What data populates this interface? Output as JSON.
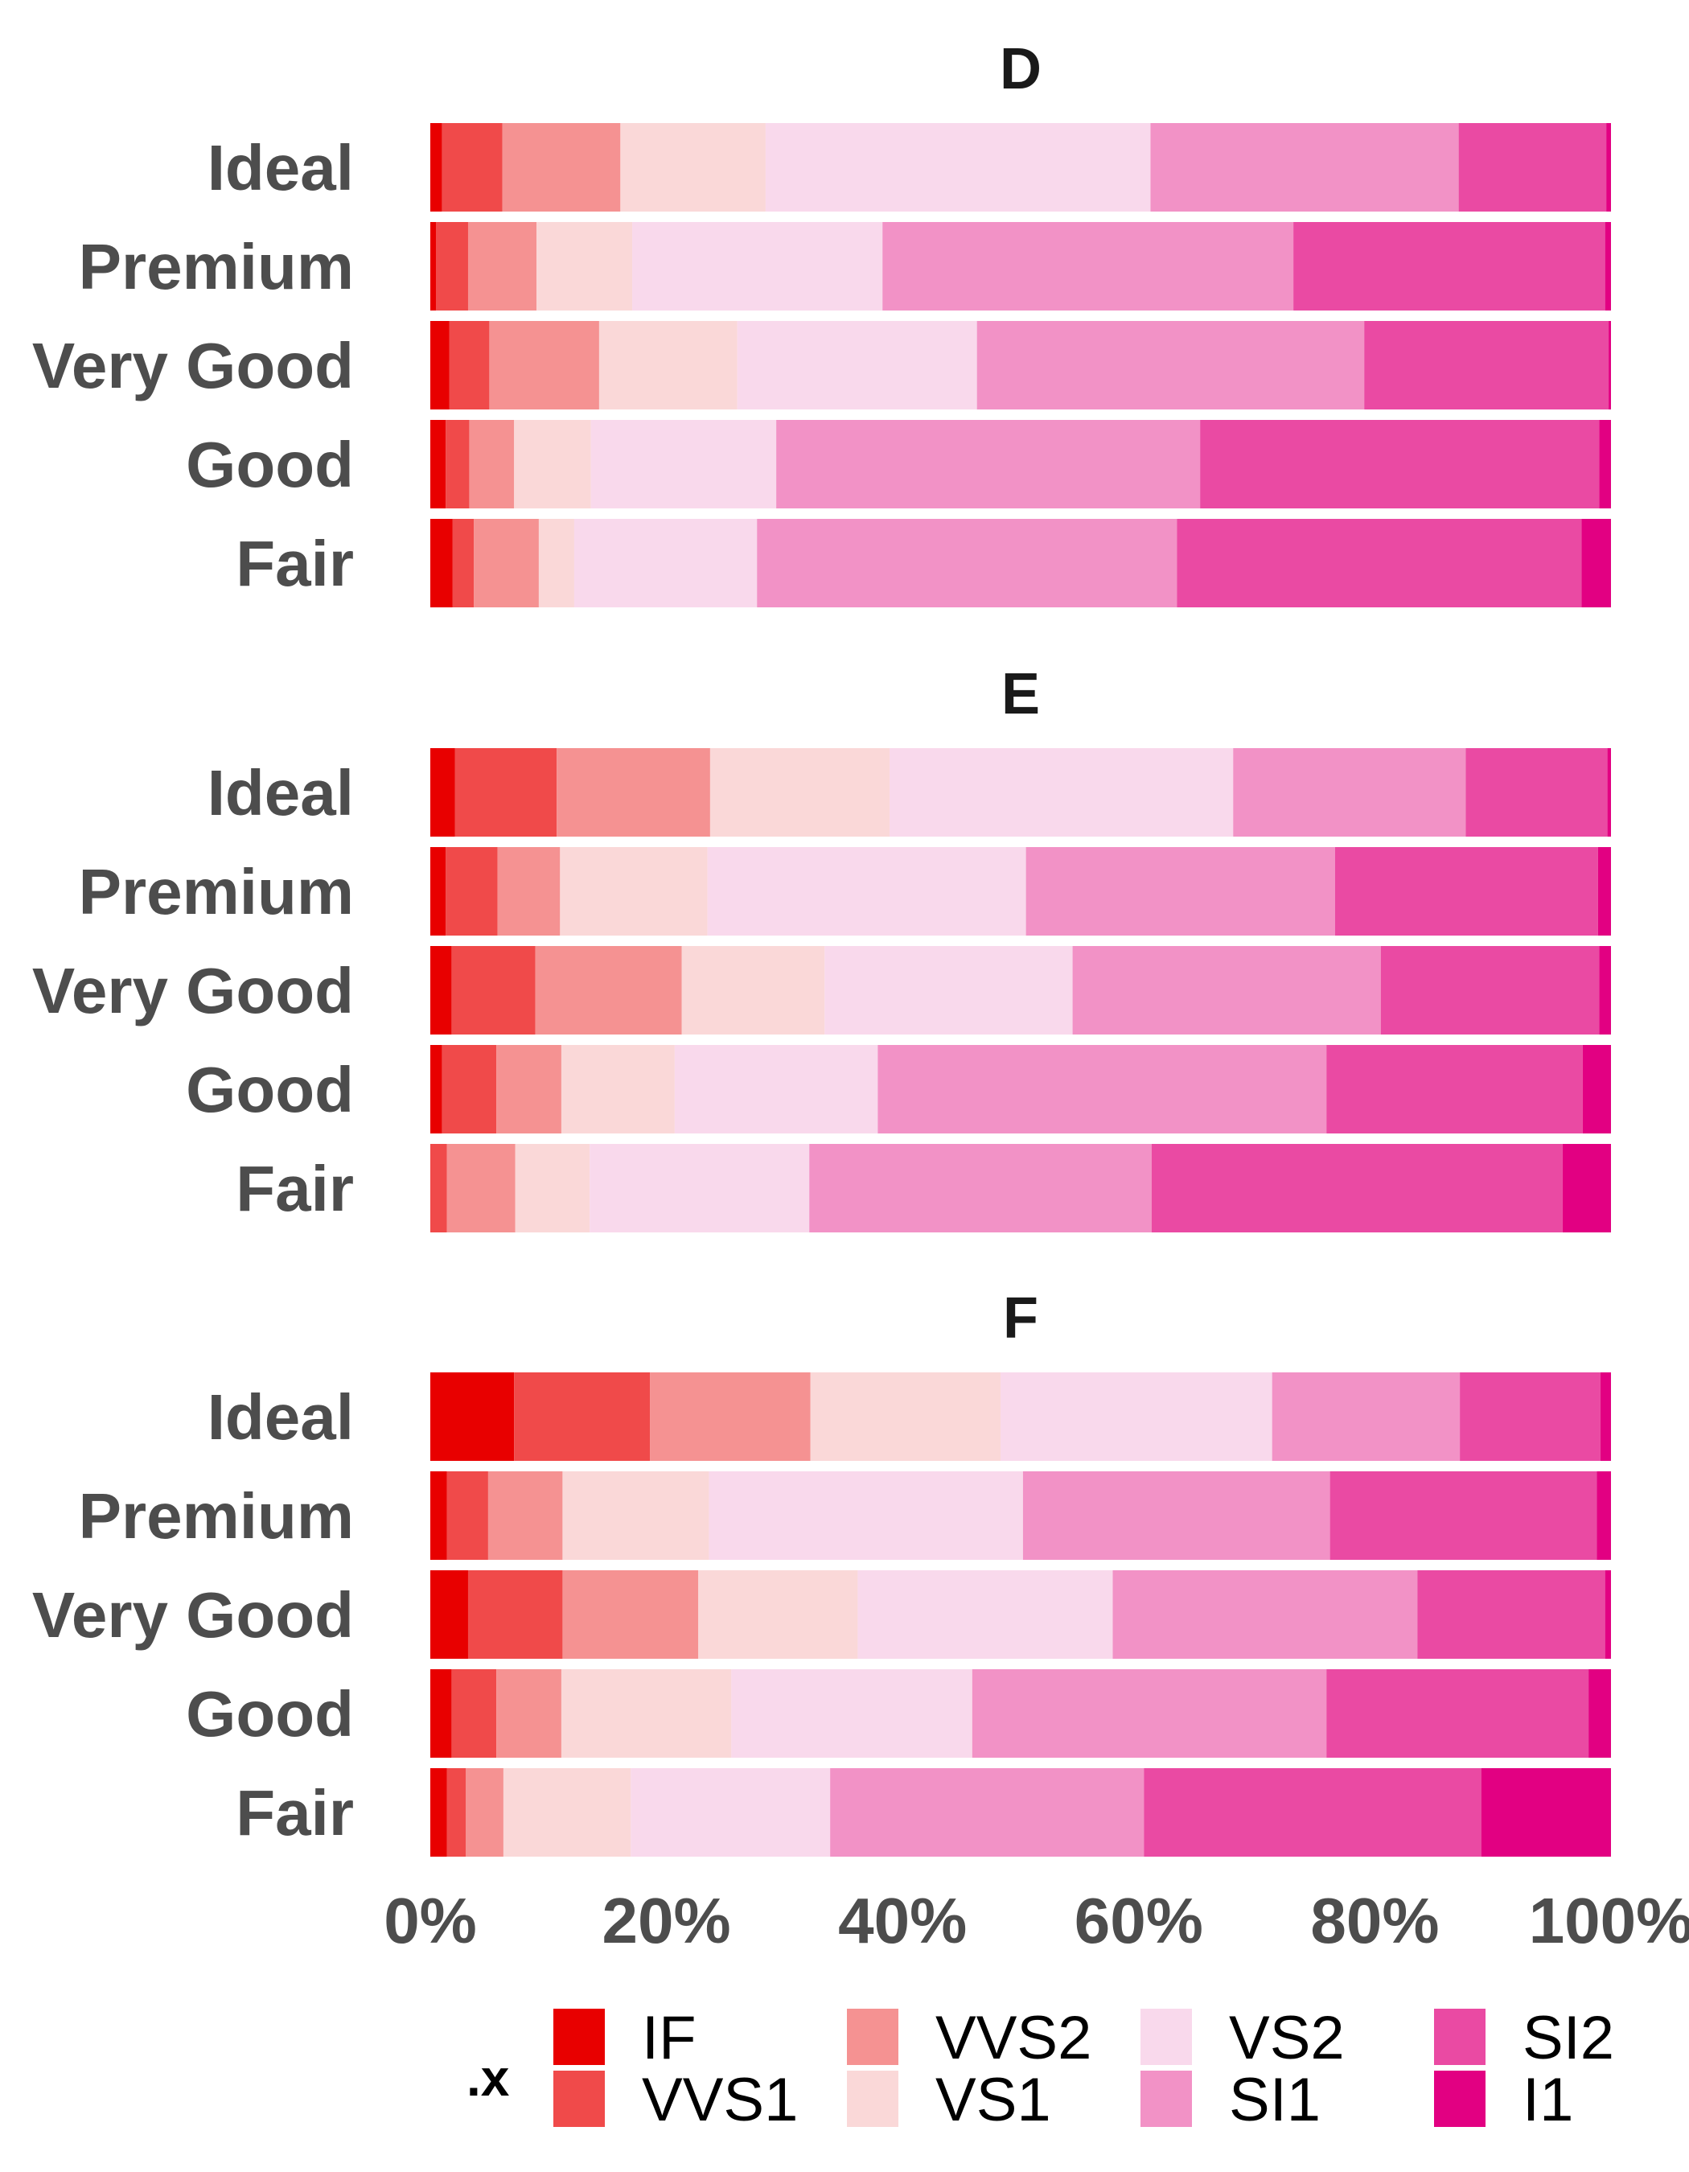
{
  "chart_data": {
    "type": "bar",
    "orientation": "horizontal",
    "stacked": "percent",
    "grid": false,
    "legend_position": "bottom",
    "legend_title": ".x",
    "categories": [
      "Ideal",
      "Premium",
      "Very Good",
      "Good",
      "Fair"
    ],
    "x_ticks": [
      "0%",
      "20%",
      "40%",
      "60%",
      "80%",
      "100%"
    ],
    "xlim": [
      0,
      100
    ],
    "series": [
      {
        "name": "IF",
        "color": "#E80000"
      },
      {
        "name": "VVS1",
        "color": "#F04A4A"
      },
      {
        "name": "VVS2",
        "color": "#F59292"
      },
      {
        "name": "VS1",
        "color": "#FAD8D8"
      },
      {
        "name": "VS2",
        "color": "#F9D9EC"
      },
      {
        "name": "SI1",
        "color": "#F292C6"
      },
      {
        "name": "SI2",
        "color": "#EA4AA3"
      },
      {
        "name": "I1",
        "color": "#E20082"
      }
    ],
    "panels": [
      {
        "title": "D",
        "values": [
          [
            1.0,
            5.1,
            10.0,
            12.3,
            32.6,
            26.1,
            12.5,
            0.4
          ],
          [
            0.5,
            2.7,
            5.8,
            8.1,
            21.2,
            34.8,
            26.4,
            0.5
          ],
          [
            1.6,
            3.4,
            9.3,
            11.7,
            20.3,
            32.8,
            20.7,
            0.2
          ],
          [
            1.3,
            2.0,
            3.8,
            6.5,
            15.7,
            35.9,
            33.8,
            1.0
          ],
          [
            1.9,
            1.8,
            5.5,
            3.0,
            15.5,
            35.6,
            34.3,
            2.5
          ]
        ]
      },
      {
        "title": "E",
        "values": [
          [
            2.1,
            8.6,
            13.0,
            15.2,
            29.1,
            19.7,
            12.0,
            0.3
          ],
          [
            1.3,
            4.4,
            5.3,
            12.5,
            27.0,
            26.2,
            22.3,
            1.1
          ],
          [
            1.8,
            7.1,
            12.4,
            12.1,
            21.0,
            26.1,
            18.5,
            1.0
          ],
          [
            1.0,
            4.6,
            5.5,
            9.6,
            17.2,
            38.0,
            21.7,
            2.4
          ],
          [
            0.0,
            1.4,
            5.8,
            6.3,
            18.6,
            29.0,
            34.8,
            4.1
          ]
        ]
      },
      {
        "title": "F",
        "values": [
          [
            7.1,
            11.5,
            13.6,
            16.1,
            23.0,
            15.9,
            11.9,
            0.9
          ],
          [
            1.4,
            3.5,
            6.3,
            12.4,
            26.6,
            26.0,
            22.6,
            1.2
          ],
          [
            3.2,
            8.0,
            11.5,
            13.5,
            21.6,
            25.8,
            15.9,
            0.5
          ],
          [
            1.8,
            3.8,
            5.5,
            14.4,
            20.4,
            30.0,
            22.2,
            1.9
          ],
          [
            1.4,
            1.6,
            3.2,
            10.8,
            16.9,
            26.6,
            28.6,
            11.0
          ]
        ]
      }
    ]
  }
}
